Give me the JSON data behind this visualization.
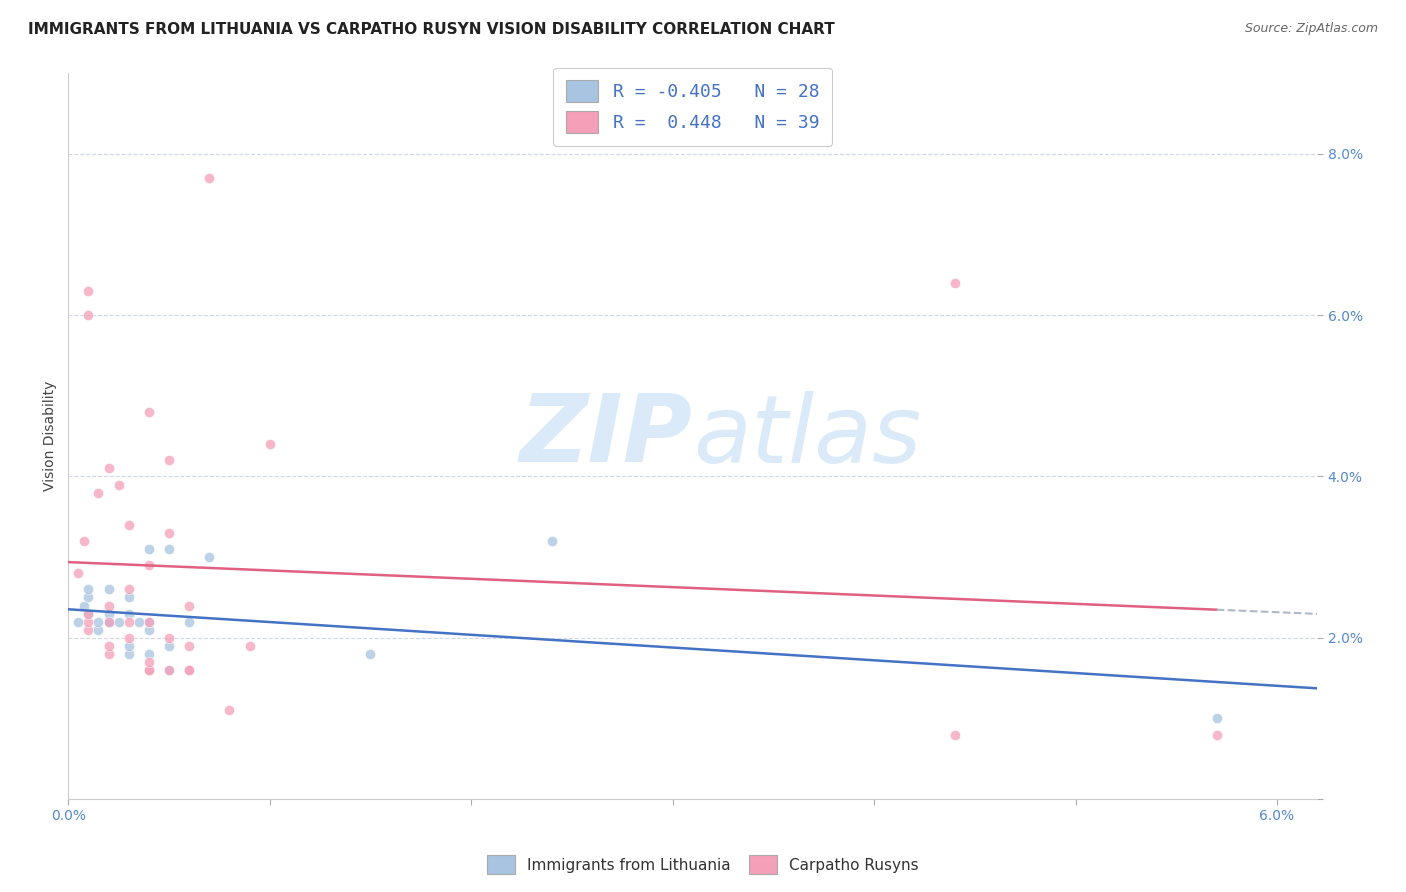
{
  "title": "IMMIGRANTS FROM LITHUANIA VS CARPATHO RUSYN VISION DISABILITY CORRELATION CHART",
  "source": "Source: ZipAtlas.com",
  "ylabel": "Vision Disability",
  "xlim": [
    0.0,
    0.062
  ],
  "ylim": [
    0.0,
    0.09
  ],
  "xticks": [
    0.0,
    0.01,
    0.02,
    0.03,
    0.04,
    0.05,
    0.06
  ],
  "yticks": [
    0.0,
    0.02,
    0.04,
    0.06,
    0.08
  ],
  "blue_color": "#a8c4e0",
  "pink_color": "#f4a0b8",
  "blue_line_color": "#4472c4",
  "pink_line_color": "#e06080",
  "dashed_line_color": "#b0b8c8",
  "watermark_color": "#daeaf8",
  "blue_scatter_x": [
    0.0005,
    0.0008,
    0.001,
    0.001,
    0.001,
    0.0015,
    0.0015,
    0.002,
    0.002,
    0.002,
    0.002,
    0.0025,
    0.003,
    0.003,
    0.003,
    0.003,
    0.0035,
    0.004,
    0.004,
    0.004,
    0.004,
    0.005,
    0.005,
    0.005,
    0.006,
    0.007,
    0.015,
    0.024,
    0.057
  ],
  "blue_scatter_y": [
    0.022,
    0.024,
    0.023,
    0.025,
    0.026,
    0.021,
    0.022,
    0.022,
    0.022,
    0.023,
    0.026,
    0.022,
    0.018,
    0.019,
    0.023,
    0.025,
    0.022,
    0.018,
    0.021,
    0.022,
    0.031,
    0.016,
    0.019,
    0.031,
    0.022,
    0.03,
    0.018,
    0.032,
    0.01
  ],
  "pink_scatter_x": [
    0.0005,
    0.0008,
    0.001,
    0.001,
    0.001,
    0.001,
    0.001,
    0.0015,
    0.002,
    0.002,
    0.002,
    0.002,
    0.002,
    0.0025,
    0.003,
    0.003,
    0.003,
    0.003,
    0.004,
    0.004,
    0.004,
    0.004,
    0.004,
    0.004,
    0.005,
    0.005,
    0.005,
    0.005,
    0.006,
    0.006,
    0.006,
    0.006,
    0.007,
    0.008,
    0.009,
    0.01,
    0.044,
    0.044,
    0.057
  ],
  "pink_scatter_y": [
    0.028,
    0.032,
    0.021,
    0.022,
    0.023,
    0.06,
    0.063,
    0.038,
    0.018,
    0.019,
    0.022,
    0.024,
    0.041,
    0.039,
    0.02,
    0.022,
    0.026,
    0.034,
    0.016,
    0.016,
    0.017,
    0.022,
    0.029,
    0.048,
    0.016,
    0.02,
    0.033,
    0.042,
    0.016,
    0.016,
    0.019,
    0.024,
    0.077,
    0.011,
    0.019,
    0.044,
    0.064,
    0.008,
    0.008
  ],
  "title_fontsize": 11,
  "axis_label_fontsize": 10,
  "tick_fontsize": 10,
  "scatter_size": 55,
  "scatter_alpha": 0.75,
  "scatter_linewidth": 0.5
}
